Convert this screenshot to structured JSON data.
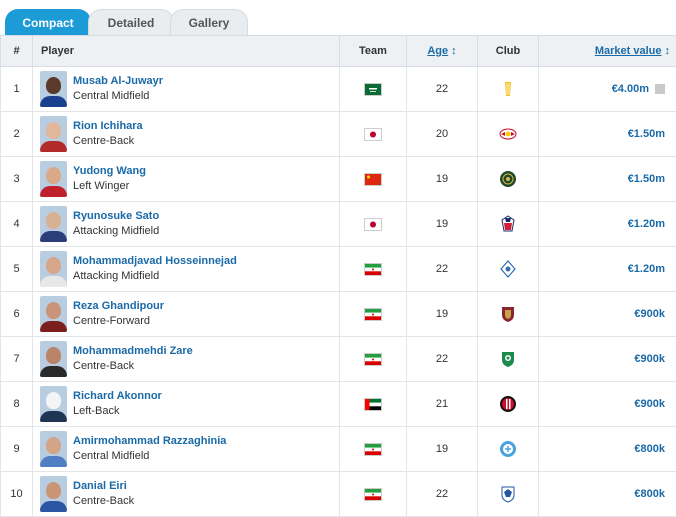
{
  "tabs": [
    {
      "label": "Compact"
    },
    {
      "label": "Detailed"
    },
    {
      "label": "Gallery"
    }
  ],
  "columns": {
    "num": "#",
    "player": "Player",
    "team": "Team",
    "age": "Age",
    "club": "Club",
    "market_value": "Market value",
    "sort_icon": "↕"
  },
  "rows": [
    {
      "num": "1",
      "name": "Musab Al-Juwayr",
      "position": "Central Midfield",
      "flag": "saudi-arabia",
      "age": "22",
      "club_crest": "yellow-bar-crest",
      "value": "€4.00m",
      "skin": "#5a3a2a",
      "shirt": "#1b3f8f"
    },
    {
      "num": "2",
      "name": "Rion Ichihara",
      "position": "Centre-Back",
      "flag": "japan",
      "age": "20",
      "club_crest": "red-bull-crest",
      "value": "€1.50m",
      "skin": "#e0b79a",
      "shirt": "#b32a2a"
    },
    {
      "num": "3",
      "name": "Yudong Wang",
      "position": "Left Winger",
      "flag": "china",
      "age": "19",
      "club_crest": "green-round-crest",
      "value": "€1.50m",
      "skin": "#d9a98a",
      "shirt": "#c0202b"
    },
    {
      "num": "4",
      "name": "Ryunosuke Sato",
      "position": "Attacking Midfield",
      "flag": "japan",
      "age": "19",
      "club_crest": "blue-red-crest",
      "value": "€1.20m",
      "skin": "#d8b094",
      "shirt": "#2b3e78"
    },
    {
      "num": "5",
      "name": "Mohammadjavad Hosseinnejad",
      "position": "Attacking Midfield",
      "flag": "iran",
      "age": "22",
      "club_crest": "blue-diamond-crest",
      "value": "€1.20m",
      "skin": "#d7a58a",
      "shirt": "#e8e8e8"
    },
    {
      "num": "6",
      "name": "Reza Ghandipour",
      "position": "Centre-Forward",
      "flag": "iran",
      "age": "19",
      "club_crest": "maroon-shield-crest",
      "value": "€900k",
      "skin": "#c99479",
      "shirt": "#7a1e1e"
    },
    {
      "num": "7",
      "name": "Mohammadmehdi Zare",
      "position": "Centre-Back",
      "flag": "iran",
      "age": "22",
      "club_crest": "green-shield-crest",
      "value": "€900k",
      "skin": "#b98468",
      "shirt": "#2a2a2a"
    },
    {
      "num": "8",
      "name": "Richard Akonnor",
      "position": "Left-Back",
      "flag": "uae",
      "age": "21",
      "club_crest": "red-black-round-crest",
      "value": "€900k",
      "skin": "#f2f4f6",
      "shirt": "#1e3553"
    },
    {
      "num": "9",
      "name": "Amirmohammad Razzaghinia",
      "position": "Central Midfield",
      "flag": "iran",
      "age": "19",
      "club_crest": "light-blue-crest",
      "value": "€800k",
      "skin": "#d2a488",
      "shirt": "#4f7fc2"
    },
    {
      "num": "10",
      "name": "Danial Eiri",
      "position": "Centre-Back",
      "flag": "iran",
      "age": "22",
      "club_crest": "blue-eagle-crest",
      "value": "€800k",
      "skin": "#c99575",
      "shirt": "#2a56a3"
    }
  ]
}
